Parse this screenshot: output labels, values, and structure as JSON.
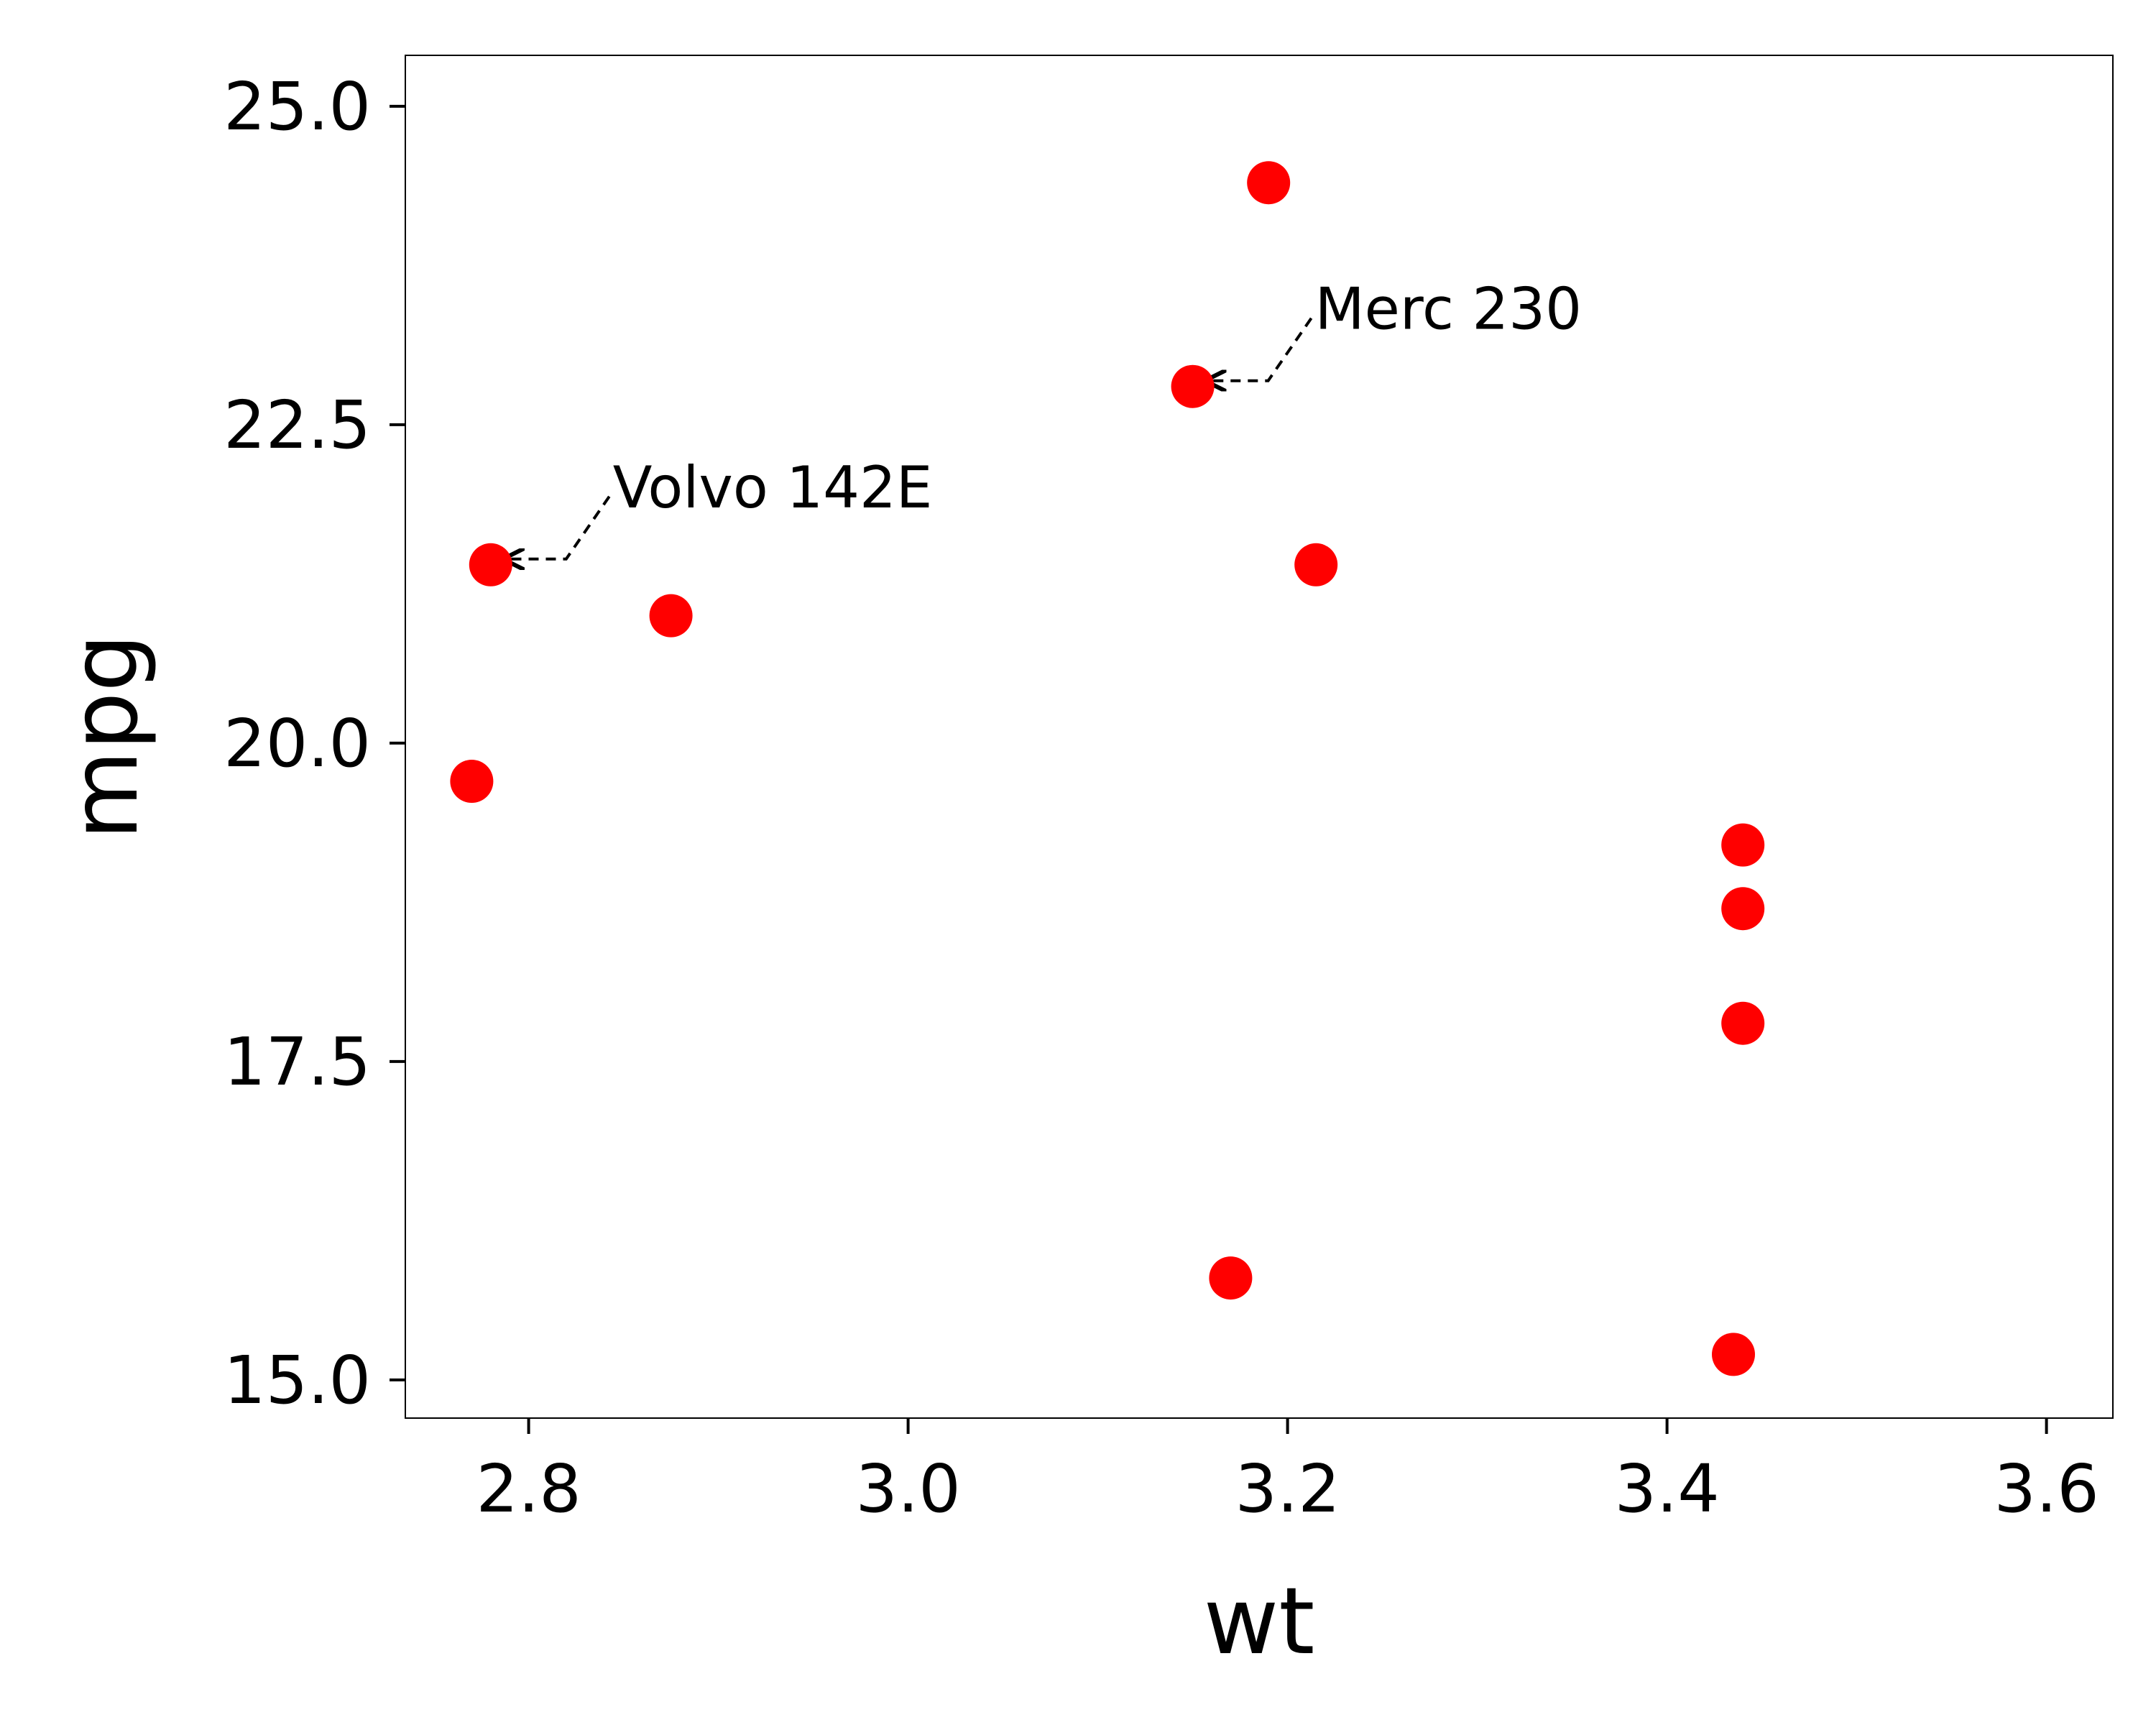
{
  "chart_data": {
    "type": "scatter",
    "xlabel": "wt",
    "ylabel": "mpg",
    "xlim": [
      2.735,
      3.635
    ],
    "ylim": [
      14.7,
      25.4
    ],
    "xticks": [
      2.8,
      3.0,
      3.2,
      3.4,
      3.6
    ],
    "xtick_labels": [
      "2.8",
      "3.0",
      "3.2",
      "3.4",
      "3.6"
    ],
    "yticks": [
      15.0,
      17.5,
      20.0,
      22.5,
      25.0
    ],
    "ytick_labels": [
      "15.0",
      "17.5",
      "20.0",
      "22.5",
      "25.0"
    ],
    "grid": false,
    "point_color": "#ff0000",
    "series": [
      {
        "points": [
          {
            "x": 2.77,
            "y": 19.7
          },
          {
            "x": 2.78,
            "y": 21.4
          },
          {
            "x": 2.875,
            "y": 21.0
          },
          {
            "x": 3.15,
            "y": 22.8
          },
          {
            "x": 3.17,
            "y": 15.8
          },
          {
            "x": 3.19,
            "y": 24.4
          },
          {
            "x": 3.215,
            "y": 21.4
          },
          {
            "x": 3.435,
            "y": 15.2
          },
          {
            "x": 3.44,
            "y": 17.8
          },
          {
            "x": 3.44,
            "y": 18.7
          },
          {
            "x": 3.44,
            "y": 19.2
          }
        ]
      }
    ],
    "annotations": [
      {
        "text": "Volvo 142E",
        "x": 2.78,
        "y": 21.4
      },
      {
        "text": "Merc 230",
        "x": 3.15,
        "y": 22.8
      }
    ]
  }
}
